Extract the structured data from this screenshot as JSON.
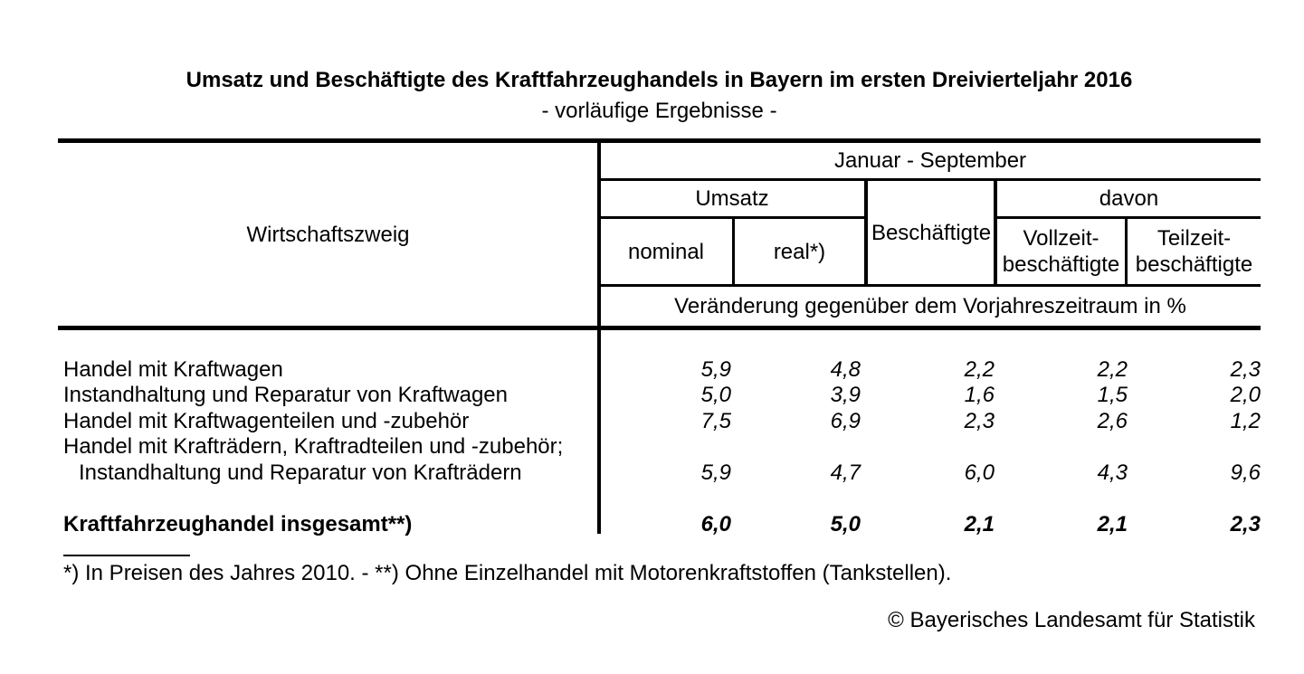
{
  "page": {
    "title": "Umsatz und Beschäftigte des Kraftfahrzeughandels in Bayern im ersten Dreivierteljahr 2016",
    "subtitle": "- vorläufige Ergebnisse -",
    "footnote": "*) In Preisen des Jahres 2010. - **) Ohne Einzelhandel mit Motorenkraftstoffen (Tankstellen).",
    "copyright": "© Bayerisches Landesamt für Statistik"
  },
  "table": {
    "header": {
      "wirtschaftszweig": "Wirtschaftszweig",
      "period": "Januar - September",
      "umsatz": "Umsatz",
      "beschaeftigte": "Beschäftigte",
      "davon": "davon",
      "nominal": "nominal",
      "real": "real*)",
      "vollzeit_line1": "Vollzeit-",
      "vollzeit_line2": "beschäftigte",
      "teilzeit_line1": "Teilzeit-",
      "teilzeit_line2": "beschäftigte",
      "unit_row": "Veränderung gegenüber dem Vorjahreszeitraum in %"
    },
    "rows": [
      {
        "label": "Handel mit Kraftwagen",
        "values": [
          "5,9",
          "4,8",
          "2,2",
          "2,2",
          "2,3"
        ]
      },
      {
        "label": "Instandhaltung und Reparatur von Kraftwagen",
        "values": [
          "5,0",
          "3,9",
          "1,6",
          "1,5",
          "2,0"
        ]
      },
      {
        "label": "Handel mit Kraftwagenteilen und -zubehör",
        "values": [
          "7,5",
          "6,9",
          "2,3",
          "2,6",
          "1,2"
        ]
      },
      {
        "label_line1": "Handel mit Krafträdern, Kraftradteilen und -zubehör;",
        "label_line2": "Instandhaltung und Reparatur von Krafträdern",
        "values": [
          "5,9",
          "4,7",
          "6,0",
          "4,3",
          "9,6"
        ]
      },
      {
        "label": "Kraftfahrzeughandel insgesamt**)",
        "values": [
          "6,0",
          "5,0",
          "2,1",
          "2,1",
          "2,3"
        ]
      }
    ]
  }
}
